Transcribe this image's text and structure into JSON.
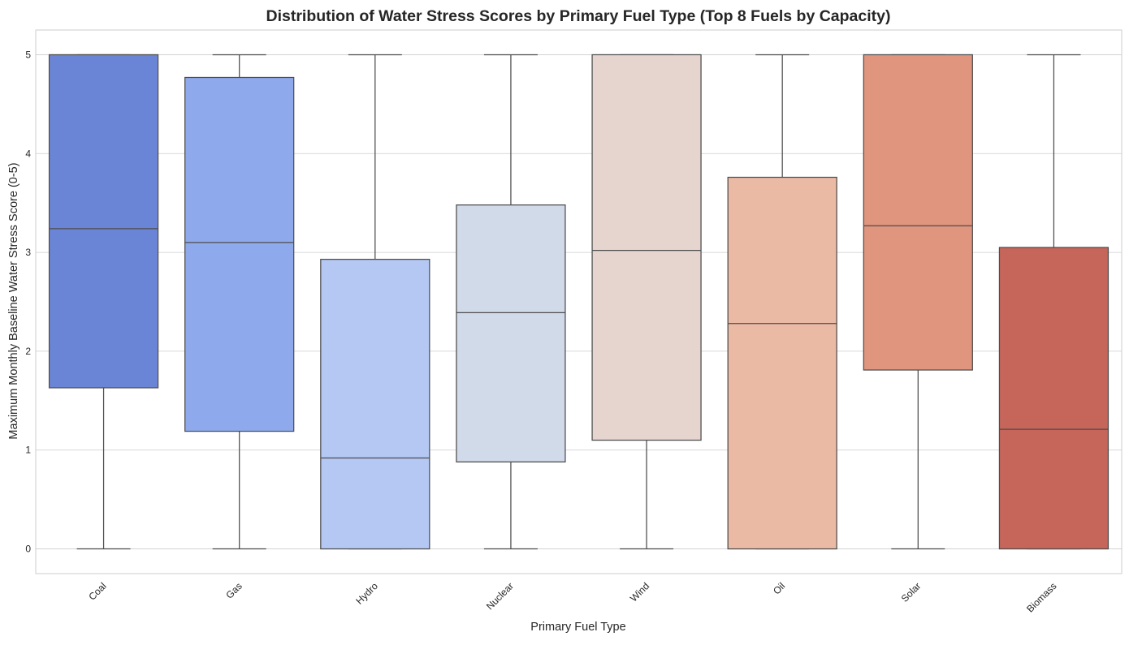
{
  "chart_data": {
    "type": "box",
    "title": "Distribution of Water Stress Scores by Primary Fuel Type (Top 8 Fuels by Capacity)",
    "xlabel": "Primary Fuel Type",
    "ylabel": "Maximum Monthly Baseline Water Stress Score (0-5)",
    "ylim": [
      -0.25,
      5.25
    ],
    "yticks": [
      0,
      1,
      2,
      3,
      4,
      5
    ],
    "grid": "horizontal",
    "categories": [
      "Coal",
      "Gas",
      "Hydro",
      "Nuclear",
      "Wind",
      "Oil",
      "Solar",
      "Biomass"
    ],
    "boxes": [
      {
        "category": "Coal",
        "whisker_low": 0,
        "q1": 1.63,
        "median": 3.24,
        "q3": 5.0,
        "whisker_high": 5,
        "color": "#6b85d6"
      },
      {
        "category": "Gas",
        "whisker_low": 0,
        "q1": 1.19,
        "median": 3.1,
        "q3": 4.77,
        "whisker_high": 5,
        "color": "#8eaaec"
      },
      {
        "category": "Hydro",
        "whisker_low": 0,
        "q1": 0.0,
        "median": 0.92,
        "q3": 2.93,
        "whisker_high": 5,
        "color": "#b4c8f3"
      },
      {
        "category": "Nuclear",
        "whisker_low": 0,
        "q1": 0.88,
        "median": 2.39,
        "q3": 3.48,
        "whisker_high": 5,
        "color": "#d0dae9"
      },
      {
        "category": "Wind",
        "whisker_low": 0,
        "q1": 1.1,
        "median": 3.02,
        "q3": 5.0,
        "whisker_high": 5,
        "color": "#e5d5ce"
      },
      {
        "category": "Oil",
        "whisker_low": 0,
        "q1": 0.0,
        "median": 2.28,
        "q3": 3.76,
        "whisker_high": 5,
        "color": "#ebbaa5"
      },
      {
        "category": "Solar",
        "whisker_low": 0,
        "q1": 1.81,
        "median": 3.27,
        "q3": 5.0,
        "whisker_high": 5,
        "color": "#e0957e"
      },
      {
        "category": "Biomass",
        "whisker_low": 0,
        "q1": 0.0,
        "median": 1.21,
        "q3": 3.05,
        "whisker_high": 5,
        "color": "#c6655a"
      }
    ]
  }
}
